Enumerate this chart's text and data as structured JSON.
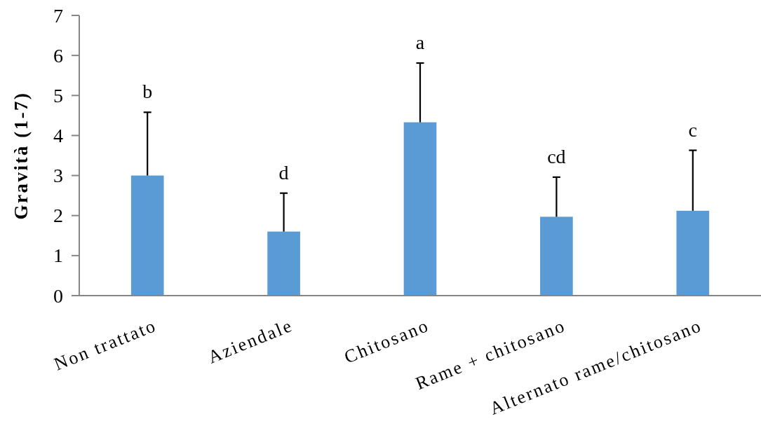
{
  "chart_data": {
    "type": "bar",
    "ylabel": "Gravità (1-7)",
    "categories": [
      "Non trattato",
      "Aziendale",
      "Chitosano",
      "Rame + chitosano",
      "Alternato rame/chitosano"
    ],
    "values": [
      3.0,
      1.6,
      4.33,
      1.97,
      2.12
    ],
    "color": "#5b9bd5",
    "errors": [
      [
        3.0,
        4.58
      ],
      [
        1.6,
        2.56
      ],
      [
        4.33,
        5.81
      ],
      [
        1.97,
        2.96
      ],
      [
        2.12,
        3.63
      ]
    ],
    "ylim": [
      0,
      7
    ],
    "yticks": [
      0,
      1,
      2,
      3,
      4,
      5,
      6,
      7
    ],
    "annotations": [
      "b",
      "d",
      "a",
      "cd",
      "c"
    ]
  }
}
